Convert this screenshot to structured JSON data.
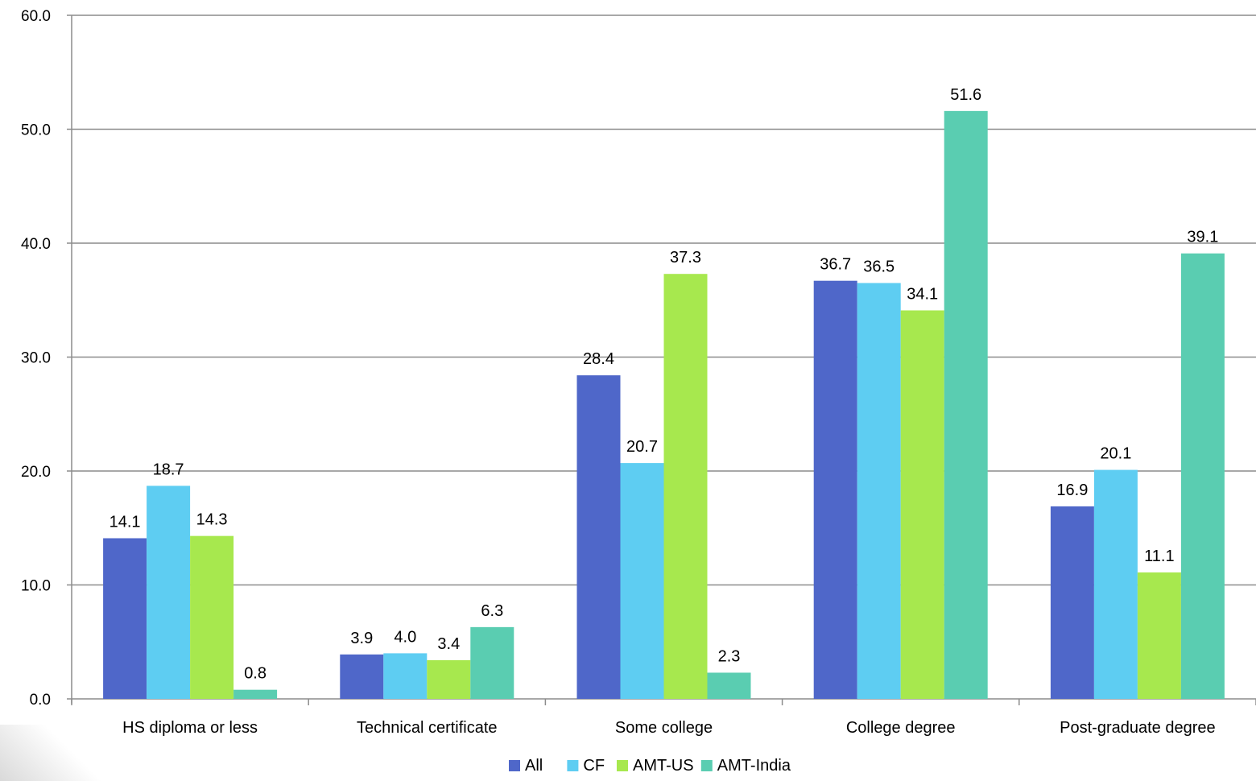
{
  "chart_data": {
    "type": "bar",
    "title": "",
    "xlabel": "",
    "ylabel": "",
    "ylim": [
      0,
      60
    ],
    "yticks": [
      0,
      10,
      20,
      30,
      40,
      50,
      60
    ],
    "ytick_labels": [
      "0.0",
      "10.0",
      "20.0",
      "30.0",
      "40.0",
      "50.0",
      "60.0"
    ],
    "grid": true,
    "legend_position": "bottom",
    "categories": [
      "HS diploma or less",
      "Technical certificate",
      "Some college",
      "College degree",
      "Post-graduate degree"
    ],
    "series": [
      {
        "name": "All",
        "color": "#4F67C9",
        "values": [
          14.1,
          3.9,
          28.4,
          36.7,
          16.9
        ],
        "labels": [
          "14.1",
          "3.9",
          "28.4",
          "36.7",
          "16.9"
        ]
      },
      {
        "name": "CF",
        "color": "#5ECDF2",
        "values": [
          18.7,
          4.0,
          20.7,
          36.5,
          20.1
        ],
        "labels": [
          "18.7",
          "4.0",
          "20.7",
          "36.5",
          "20.1"
        ]
      },
      {
        "name": "AMT-US",
        "color": "#A7E84E",
        "values": [
          14.3,
          3.4,
          37.3,
          34.1,
          11.1
        ],
        "labels": [
          "14.3",
          "3.4",
          "37.3",
          "34.1",
          "11.1"
        ]
      },
      {
        "name": "AMT-India",
        "color": "#5ACDB1",
        "values": [
          0.8,
          6.3,
          2.3,
          51.6,
          39.1
        ],
        "labels": [
          "0.8",
          "6.3",
          "2.3",
          "51.6",
          "39.1"
        ]
      }
    ]
  }
}
